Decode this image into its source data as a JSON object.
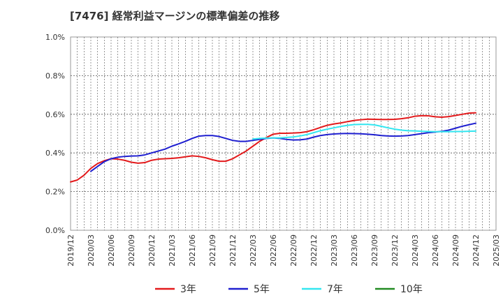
{
  "title": "[7476]  経常利益マージンの標準偏差の推移",
  "colors": {
    "3年": "#e31a1c",
    "5年": "#1f1fd0",
    "7年": "#33e6f0",
    "10年": "#228b22",
    "grid": "#555555",
    "axis": "#999999"
  },
  "chart_data": {
    "type": "line",
    "title": "[7476]  経常利益マージンの標準偏差の推移",
    "xlabel": "",
    "ylabel": "",
    "x_ticks": [
      "2019/12",
      "2020/03",
      "2020/06",
      "2020/09",
      "2020/12",
      "2021/03",
      "2021/06",
      "2021/09",
      "2021/12",
      "2022/03",
      "2022/06",
      "2022/09",
      "2022/12",
      "2023/03",
      "2023/06",
      "2023/09",
      "2023/12",
      "2024/03",
      "2024/06",
      "2024/09",
      "2024/12",
      "2025/03"
    ],
    "y_ticks": [
      "0.0%",
      "0.2%",
      "0.4%",
      "0.6%",
      "0.8%",
      "1.0%"
    ],
    "ylim": [
      0,
      1.0
    ],
    "grid": true,
    "legend": "bottom",
    "series": [
      {
        "name": "3年",
        "x": [
          "2019/12",
          "2020/01",
          "2020/02",
          "2020/03",
          "2020/04",
          "2020/05",
          "2020/06",
          "2020/07",
          "2020/08",
          "2020/09",
          "2020/10",
          "2020/11",
          "2020/12",
          "2021/01",
          "2021/02",
          "2021/03",
          "2021/04",
          "2021/05",
          "2021/06",
          "2021/07",
          "2021/08",
          "2021/09",
          "2021/10",
          "2021/11",
          "2021/12",
          "2022/01",
          "2022/02",
          "2022/03",
          "2022/04",
          "2022/05",
          "2022/06",
          "2022/07",
          "2022/08",
          "2022/09",
          "2022/10",
          "2022/11",
          "2022/12",
          "2023/01",
          "2023/02",
          "2023/03",
          "2023/04",
          "2023/05",
          "2023/06",
          "2023/07",
          "2023/08",
          "2023/09",
          "2023/10",
          "2023/11",
          "2023/12",
          "2024/01",
          "2024/02",
          "2024/03",
          "2024/04",
          "2024/05",
          "2024/06",
          "2024/07",
          "2024/08",
          "2024/09",
          "2024/10",
          "2024/11",
          "2024/12"
        ],
        "values": [
          0.25,
          0.26,
          0.285,
          0.32,
          0.345,
          0.36,
          0.37,
          0.368,
          0.362,
          0.352,
          0.347,
          0.35,
          0.362,
          0.368,
          0.37,
          0.372,
          0.375,
          0.38,
          0.385,
          0.382,
          0.375,
          0.365,
          0.357,
          0.357,
          0.37,
          0.39,
          0.41,
          0.435,
          0.46,
          0.48,
          0.497,
          0.502,
          0.502,
          0.503,
          0.505,
          0.51,
          0.52,
          0.532,
          0.543,
          0.55,
          0.555,
          0.562,
          0.568,
          0.572,
          0.575,
          0.574,
          0.573,
          0.573,
          0.574,
          0.577,
          0.582,
          0.59,
          0.593,
          0.592,
          0.587,
          0.585,
          0.588,
          0.594,
          0.6,
          0.606,
          0.608
        ]
      },
      {
        "name": "5年",
        "x": [
          "2020/03",
          "2020/04",
          "2020/05",
          "2020/06",
          "2020/07",
          "2020/08",
          "2020/09",
          "2020/10",
          "2020/11",
          "2020/12",
          "2021/01",
          "2021/02",
          "2021/03",
          "2021/04",
          "2021/05",
          "2021/06",
          "2021/07",
          "2021/08",
          "2021/09",
          "2021/10",
          "2021/11",
          "2021/12",
          "2022/01",
          "2022/02",
          "2022/03",
          "2022/04",
          "2022/05",
          "2022/06",
          "2022/07",
          "2022/08",
          "2022/09",
          "2022/10",
          "2022/11",
          "2022/12",
          "2023/01",
          "2023/02",
          "2023/03",
          "2023/04",
          "2023/05",
          "2023/06",
          "2023/07",
          "2023/08",
          "2023/09",
          "2023/10",
          "2023/11",
          "2023/12",
          "2024/01",
          "2024/02",
          "2024/03",
          "2024/04",
          "2024/05",
          "2024/06",
          "2024/07",
          "2024/08",
          "2024/09",
          "2024/10",
          "2024/11",
          "2024/12"
        ],
        "values": [
          0.305,
          0.33,
          0.355,
          0.37,
          0.378,
          0.382,
          0.384,
          0.385,
          0.39,
          0.4,
          0.41,
          0.42,
          0.435,
          0.447,
          0.46,
          0.475,
          0.487,
          0.49,
          0.49,
          0.485,
          0.475,
          0.465,
          0.46,
          0.46,
          0.465,
          0.47,
          0.475,
          0.478,
          0.475,
          0.47,
          0.467,
          0.468,
          0.472,
          0.482,
          0.49,
          0.495,
          0.498,
          0.5,
          0.501,
          0.5,
          0.499,
          0.497,
          0.494,
          0.49,
          0.488,
          0.487,
          0.488,
          0.49,
          0.495,
          0.5,
          0.505,
          0.508,
          0.512,
          0.518,
          0.528,
          0.538,
          0.546,
          0.554
        ]
      },
      {
        "name": "7年",
        "x": [
          "2022/03",
          "2022/04",
          "2022/05",
          "2022/06",
          "2022/07",
          "2022/08",
          "2022/09",
          "2022/10",
          "2022/11",
          "2022/12",
          "2023/01",
          "2023/02",
          "2023/03",
          "2023/04",
          "2023/05",
          "2023/06",
          "2023/07",
          "2023/08",
          "2023/09",
          "2023/10",
          "2023/11",
          "2023/12",
          "2024/01",
          "2024/02",
          "2024/03",
          "2024/04",
          "2024/05",
          "2024/06",
          "2024/07",
          "2024/08",
          "2024/09",
          "2024/10",
          "2024/11",
          "2024/12"
        ],
        "values": [
          0.472,
          0.475,
          0.477,
          0.478,
          0.478,
          0.48,
          0.483,
          0.488,
          0.495,
          0.505,
          0.515,
          0.523,
          0.53,
          0.537,
          0.543,
          0.547,
          0.548,
          0.548,
          0.545,
          0.538,
          0.53,
          0.523,
          0.518,
          0.515,
          0.514,
          0.512,
          0.511,
          0.51,
          0.51,
          0.51,
          0.511,
          0.511,
          0.512,
          0.513
        ]
      },
      {
        "name": "10年",
        "x": [],
        "values": []
      }
    ]
  }
}
